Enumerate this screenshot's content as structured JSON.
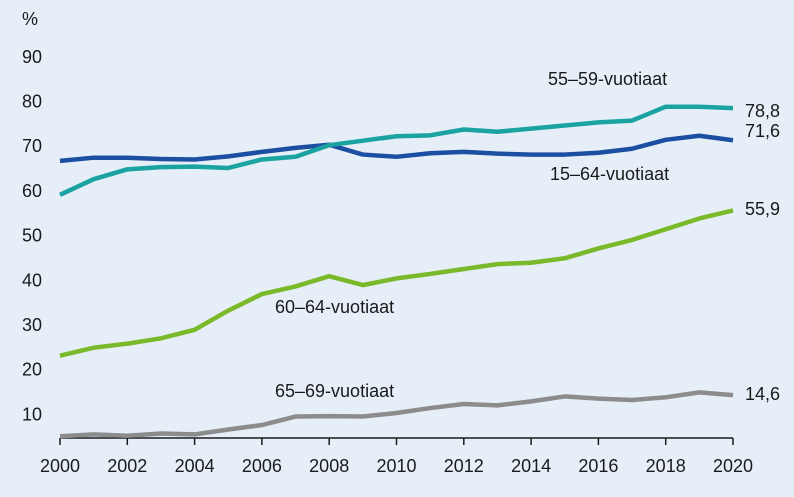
{
  "chart_data": {
    "type": "line",
    "y_unit_label": "%",
    "x": [
      2000,
      2001,
      2002,
      2003,
      2004,
      2005,
      2006,
      2007,
      2008,
      2009,
      2010,
      2011,
      2012,
      2013,
      2014,
      2015,
      2016,
      2017,
      2018,
      2019,
      2020
    ],
    "series": [
      {
        "name": "15–64-vuotiaat",
        "color": "#1c4fa1",
        "values": [
          67.0,
          67.7,
          67.7,
          67.4,
          67.3,
          68.0,
          69.0,
          69.9,
          70.6,
          68.4,
          67.9,
          68.7,
          69.0,
          68.6,
          68.4,
          68.4,
          68.8,
          69.7,
          71.7,
          72.6,
          71.6
        ],
        "value_labels": [
          null,
          null,
          null,
          null,
          null,
          null,
          null,
          null,
          null,
          null,
          null,
          null,
          null,
          null,
          null,
          null,
          null,
          null,
          null,
          null,
          "71,6"
        ]
      },
      {
        "name": "55–59-vuotiaat",
        "color": "#1aa3a0",
        "values": [
          59.4,
          62.9,
          65.1,
          65.6,
          65.7,
          65.4,
          67.3,
          67.9,
          70.5,
          71.5,
          72.5,
          72.7,
          74.0,
          73.5,
          74.2,
          74.9,
          75.6,
          76.0,
          79.1,
          79.1,
          78.8
        ],
        "value_labels": [
          null,
          null,
          null,
          null,
          null,
          null,
          null,
          null,
          null,
          null,
          null,
          null,
          null,
          null,
          null,
          null,
          null,
          null,
          null,
          null,
          "78,8"
        ]
      },
      {
        "name": "60–64-vuotiaat",
        "color": "#7ab929",
        "values": [
          23.4,
          25.2,
          26.1,
          27.3,
          29.2,
          33.5,
          37.2,
          38.9,
          41.2,
          39.2,
          40.7,
          41.7,
          42.8,
          43.9,
          44.2,
          45.2,
          47.4,
          49.3,
          51.7,
          54.1,
          55.9
        ],
        "value_labels": [
          null,
          null,
          null,
          null,
          null,
          null,
          null,
          null,
          null,
          null,
          null,
          null,
          null,
          null,
          null,
          null,
          null,
          null,
          null,
          null,
          "55,9"
        ]
      },
      {
        "name": "65–69-vuotiaat",
        "color": "#8c8c8c",
        "values": [
          5.4,
          5.8,
          5.5,
          6.0,
          5.8,
          6.9,
          7.9,
          9.8,
          9.9,
          9.8,
          10.6,
          11.7,
          12.6,
          12.3,
          13.2,
          14.3,
          13.8,
          13.5,
          14.1,
          15.2,
          14.6
        ],
        "value_labels": [
          null,
          null,
          null,
          null,
          null,
          null,
          null,
          null,
          null,
          null,
          null,
          null,
          null,
          null,
          null,
          null,
          null,
          null,
          null,
          null,
          "14,6"
        ]
      }
    ],
    "xlim": [
      2000,
      2020
    ],
    "xticks": [
      2000,
      2002,
      2004,
      2006,
      2008,
      2010,
      2012,
      2014,
      2016,
      2018,
      2020
    ],
    "ylim": [
      5,
      90
    ],
    "yticks": [
      10,
      20,
      30,
      40,
      50,
      60,
      70,
      80,
      90
    ],
    "grid": false
  }
}
